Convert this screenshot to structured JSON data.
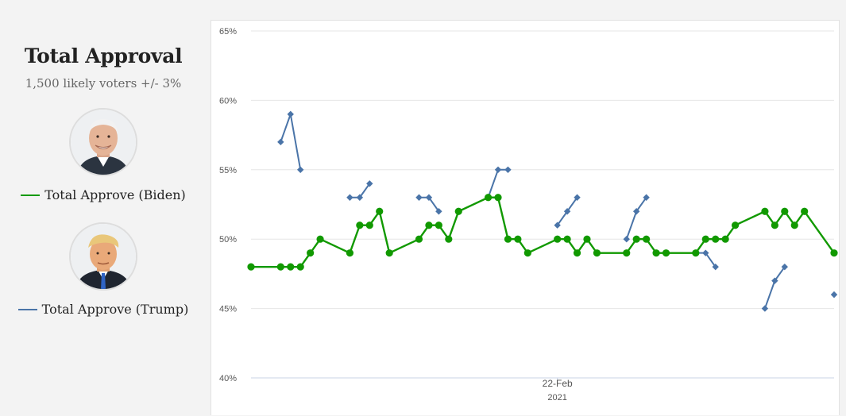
{
  "sidebar": {
    "title": "Total Approval",
    "subtitle": "1,500 likely voters +/- 3%",
    "legend": [
      {
        "label": "Total Approve (Biden)",
        "color": "#119900"
      },
      {
        "label": "Total Approve (Trump)",
        "color": "#4a74a8"
      }
    ]
  },
  "chart_data": {
    "type": "line",
    "title": "Total Approval",
    "subtitle": "1,500 likely voters +/- 3%",
    "ylim": [
      40,
      65
    ],
    "yticks": [
      "40%",
      "45%",
      "50%",
      "55%",
      "60%",
      "65%"
    ],
    "x_tick_labels": [
      {
        "label": "22-Feb",
        "sub": "2021",
        "x": 31
      }
    ],
    "grid": true,
    "legend": "left-sidebar",
    "series": [
      {
        "name": "Total Approve (Biden)",
        "color": "#119900",
        "marker": "circle",
        "points": [
          [
            0,
            48
          ],
          [
            3,
            48
          ],
          [
            4,
            48
          ],
          [
            5,
            48
          ],
          [
            6,
            49
          ],
          [
            7,
            50
          ],
          [
            10,
            49
          ],
          [
            11,
            51
          ],
          [
            12,
            51
          ],
          [
            13,
            52
          ],
          [
            14,
            49
          ],
          [
            17,
            50
          ],
          [
            18,
            51
          ],
          [
            19,
            51
          ],
          [
            20,
            50
          ],
          [
            21,
            52
          ],
          [
            24,
            53
          ],
          [
            25,
            53
          ],
          [
            26,
            50
          ],
          [
            27,
            50
          ],
          [
            28,
            49
          ],
          [
            31,
            50
          ],
          [
            32,
            50
          ],
          [
            33,
            49
          ],
          [
            34,
            50
          ],
          [
            35,
            49
          ],
          [
            38,
            49
          ],
          [
            39,
            50
          ],
          [
            40,
            50
          ],
          [
            41,
            49
          ],
          [
            42,
            49
          ],
          [
            45,
            49
          ],
          [
            46,
            50
          ],
          [
            47,
            50
          ],
          [
            48,
            50
          ],
          [
            49,
            51
          ],
          [
            52,
            52
          ],
          [
            53,
            51
          ],
          [
            54,
            52
          ],
          [
            55,
            51
          ],
          [
            56,
            52
          ],
          [
            59,
            49
          ]
        ]
      },
      {
        "name": "Total Approve (Trump)",
        "color": "#4a74a8",
        "marker": "diamond",
        "segments": [
          [
            [
              3,
              57
            ],
            [
              4,
              59
            ],
            [
              5,
              55
            ]
          ],
          [
            [
              10,
              53
            ],
            [
              11,
              53
            ],
            [
              12,
              54
            ]
          ],
          [
            [
              17,
              53
            ],
            [
              18,
              53
            ],
            [
              19,
              52
            ]
          ],
          [
            [
              24,
              53
            ],
            [
              25,
              55
            ],
            [
              26,
              55
            ]
          ],
          [
            [
              31,
              51
            ],
            [
              32,
              52
            ],
            [
              33,
              53
            ]
          ],
          [
            [
              38,
              50
            ],
            [
              39,
              52
            ],
            [
              40,
              53
            ]
          ],
          [
            [
              45,
              49
            ],
            [
              46,
              49
            ],
            [
              47,
              48
            ]
          ],
          [
            [
              52,
              45
            ],
            [
              53,
              47
            ],
            [
              54,
              48
            ]
          ],
          [
            [
              59,
              46
            ]
          ]
        ]
      }
    ]
  }
}
